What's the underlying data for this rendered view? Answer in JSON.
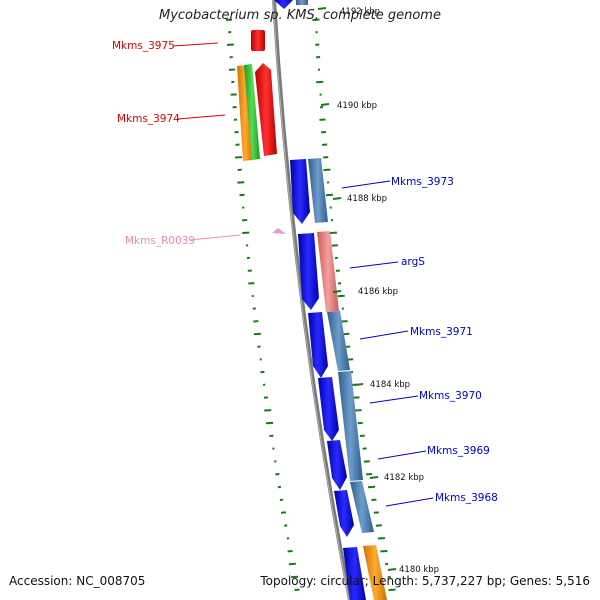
{
  "title": "Mycobacterium sp. KMS, complete genome",
  "footer": {
    "accession": "Accession: NC_008705",
    "summary": "Topology: circular; Length: 5,737,227 bp; Genes: 5,516"
  },
  "colors": {
    "backbone": "#777777",
    "tick": "#1a7a1a",
    "cds": "#0000ee",
    "cds_alt": "#4a80b4",
    "rna": "#e88080",
    "red": "#ff0000",
    "orange": "#ff9900",
    "green": "#33cc33",
    "pseudo": "#ee99cc"
  },
  "scale_labels": [
    "4192 kbp",
    "4190 kbp",
    "4188 kbp",
    "4186 kbp",
    "4184 kbp",
    "4182 kbp",
    "4180 kbp"
  ],
  "genes": [
    {
      "name": "Mkms_3975",
      "color": "#dd0000"
    },
    {
      "name": "Mkms_3974",
      "color": "#dd0000"
    },
    {
      "name": "Mkms_3973",
      "color": "#0000cc"
    },
    {
      "name": "Mkms_R0039",
      "color": "#ee88bb"
    },
    {
      "name": "argS",
      "color": "#0000cc"
    },
    {
      "name": "Mkms_3971",
      "color": "#0000cc"
    },
    {
      "name": "Mkms_3970",
      "color": "#0000cc"
    },
    {
      "name": "Mkms_3969",
      "color": "#0000cc"
    },
    {
      "name": "Mkms_3968",
      "color": "#0000cc"
    }
  ]
}
